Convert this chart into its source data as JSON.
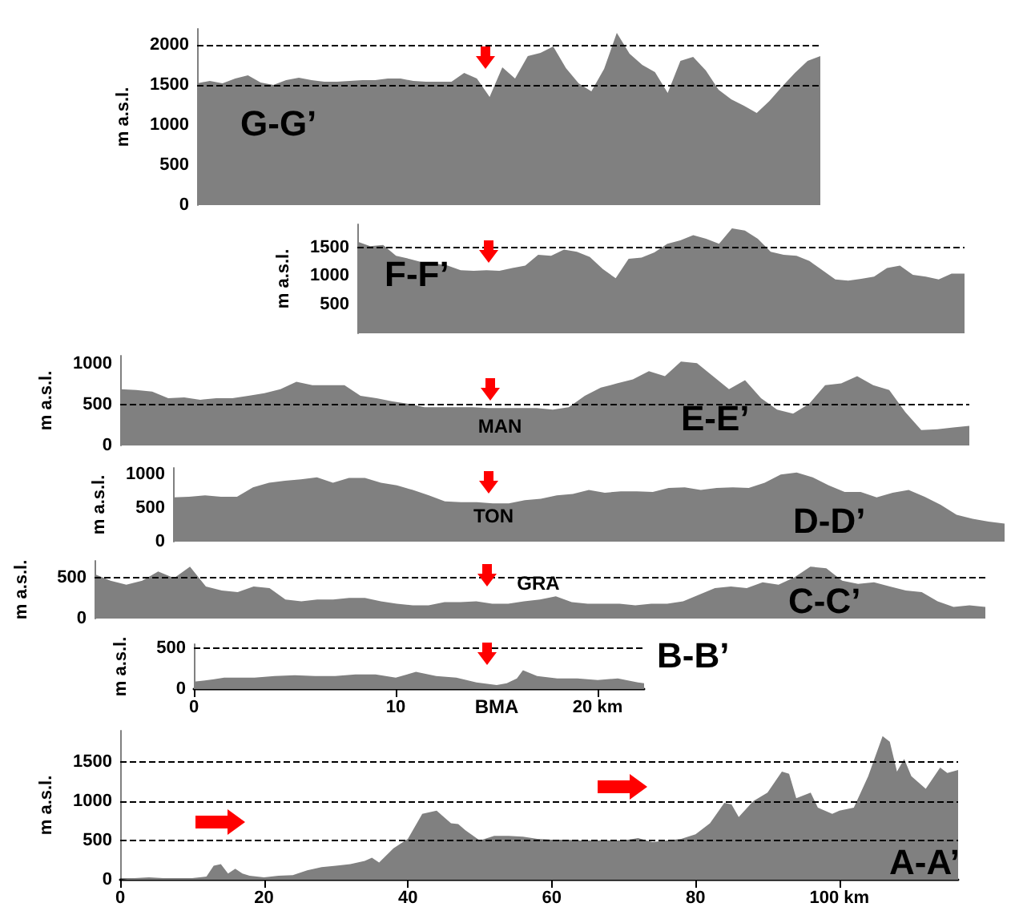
{
  "chart_data": [
    {
      "type": "area",
      "title": "G-G’",
      "ylabel": "m a.s.l.",
      "tick_labels": "y",
      "ylim": [
        0,
        2200
      ],
      "yticks": [
        0,
        500,
        1000,
        1500,
        2000
      ],
      "categories": [
        null,
        null,
        null,
        null,
        null,
        null,
        null,
        null,
        null,
        null,
        null,
        null,
        null,
        null,
        null,
        null,
        null,
        null,
        null,
        null,
        null,
        null,
        null,
        null,
        null,
        null,
        null,
        null,
        null,
        null,
        null,
        null,
        null,
        null,
        null,
        null,
        null,
        null,
        null,
        null,
        null,
        null,
        null,
        null,
        null,
        null,
        null,
        null,
        null,
        null
      ],
      "series": [
        {
          "color": "#808080",
          "values": [
            1520,
            1550,
            1520,
            1580,
            1620,
            1530,
            1500,
            1560,
            1590,
            1560,
            1540,
            1540,
            1550,
            1560,
            1560,
            1580,
            1580,
            1550,
            1540,
            1540,
            1540,
            1650,
            1580,
            1350,
            1720,
            1580,
            1860,
            1900,
            1980,
            1710,
            1520,
            1420,
            1700,
            2150,
            1890,
            1750,
            1660,
            1400,
            1800,
            1850,
            1680,
            1440,
            1320,
            1240,
            1150,
            1300,
            1480,
            1650,
            1800,
            1860
          ]
        }
      ],
      "ref_lines": [
        {
          "axis": "y",
          "value": 1500,
          "line_style": "dashed"
        },
        {
          "axis": "y",
          "value": 2000,
          "line_style": "dashed"
        }
      ]
    },
    {
      "type": "area",
      "title": "F-F’",
      "ylabel": "m a.s.l.",
      "tick_labels": "y",
      "ylim": [
        0,
        1900
      ],
      "yticks": [
        500,
        1000,
        1500
      ],
      "categories": [
        null,
        null,
        null,
        null,
        null,
        null,
        null,
        null,
        null,
        null,
        null,
        null,
        null,
        null,
        null,
        null,
        null,
        null,
        null,
        null,
        null,
        null,
        null,
        null,
        null,
        null,
        null,
        null,
        null,
        null,
        null,
        null,
        null,
        null,
        null,
        null,
        null,
        null,
        null,
        null,
        null,
        null,
        null,
        null,
        null,
        null,
        null,
        null
      ],
      "series": [
        {
          "color": "#808080",
          "values": [
            1600,
            1520,
            1540,
            1350,
            1300,
            1240,
            1220,
            1180,
            1100,
            1090,
            1100,
            1090,
            1140,
            1180,
            1370,
            1350,
            1460,
            1420,
            1330,
            1120,
            960,
            1300,
            1320,
            1410,
            1560,
            1620,
            1710,
            1650,
            1560,
            1830,
            1790,
            1650,
            1420,
            1370,
            1350,
            1260,
            1100,
            940,
            920,
            950,
            990,
            1140,
            1180,
            1020,
            990,
            940,
            1040,
            1040
          ]
        }
      ],
      "ref_lines": [
        {
          "axis": "y",
          "value": 1500,
          "line_style": "dashed"
        }
      ]
    },
    {
      "type": "area",
      "title": "E-E’",
      "ylabel": "m a.s.l.",
      "tick_labels": "y",
      "ylim": [
        0,
        1100
      ],
      "yticks": [
        0,
        500,
        1000
      ],
      "annotations": [
        "MAN"
      ],
      "categories": [
        null,
        null,
        null,
        null,
        null,
        null,
        null,
        null,
        null,
        null,
        null,
        null,
        null,
        null,
        null,
        null,
        null,
        null,
        null,
        null,
        null,
        null,
        null,
        null,
        null,
        null,
        null,
        null,
        null,
        null,
        null,
        null,
        null,
        null,
        null,
        null,
        null,
        null,
        null,
        null,
        null,
        null,
        null,
        null,
        null,
        null,
        null,
        null,
        null,
        null,
        null,
        null,
        null,
        null
      ],
      "series": [
        {
          "color": "#808080",
          "values": [
            690,
            680,
            660,
            580,
            590,
            560,
            580,
            580,
            610,
            640,
            690,
            780,
            740,
            740,
            740,
            610,
            580,
            540,
            510,
            470,
            470,
            470,
            470,
            460,
            460,
            460,
            460,
            440,
            470,
            610,
            710,
            760,
            810,
            910,
            850,
            1030,
            1010,
            850,
            690,
            800,
            580,
            440,
            390,
            510,
            740,
            760,
            850,
            740,
            680,
            410,
            190,
            200,
            220,
            240
          ]
        }
      ],
      "ref_lines": [
        {
          "axis": "y",
          "value": 500,
          "line_style": "dashed"
        }
      ]
    },
    {
      "type": "area",
      "title": "D-D’",
      "ylabel": "m a.s.l.",
      "tick_labels": "y",
      "ylim": [
        0,
        1100
      ],
      "yticks": [
        0,
        500,
        1000
      ],
      "annotations": [
        "TON"
      ],
      "categories": [
        null,
        null,
        null,
        null,
        null,
        null,
        null,
        null,
        null,
        null,
        null,
        null,
        null,
        null,
        null,
        null,
        null,
        null,
        null,
        null,
        null,
        null,
        null,
        null,
        null,
        null,
        null,
        null,
        null,
        null,
        null,
        null,
        null,
        null,
        null,
        null,
        null,
        null,
        null,
        null,
        null,
        null,
        null,
        null,
        null,
        null,
        null,
        null,
        null,
        null,
        null,
        null,
        null
      ],
      "series": [
        {
          "color": "#808080",
          "values": [
            660,
            670,
            690,
            670,
            670,
            810,
            880,
            910,
            930,
            960,
            880,
            950,
            950,
            880,
            840,
            770,
            690,
            600,
            590,
            590,
            570,
            570,
            620,
            640,
            690,
            710,
            770,
            730,
            750,
            750,
            740,
            800,
            810,
            770,
            800,
            810,
            800,
            880,
            1000,
            1030,
            960,
            840,
            740,
            740,
            660,
            730,
            770,
            670,
            550,
            400,
            340,
            300,
            270
          ]
        }
      ]
    },
    {
      "type": "area",
      "title": "C-C’",
      "ylabel": "m a.s.l.",
      "tick_labels": "y",
      "ylim": [
        0,
        700
      ],
      "yticks": [
        0,
        500
      ],
      "annotations": [
        "GRA"
      ],
      "categories": [
        null,
        null,
        null,
        null,
        null,
        null,
        null,
        null,
        null,
        null,
        null,
        null,
        null,
        null,
        null,
        null,
        null,
        null,
        null,
        null,
        null,
        null,
        null,
        null,
        null,
        null,
        null,
        null,
        null,
        null,
        null,
        null,
        null,
        null,
        null,
        null,
        null,
        null,
        null,
        null,
        null,
        null,
        null,
        null,
        null,
        null,
        null,
        null,
        null,
        null,
        null,
        null,
        null,
        null,
        null,
        null,
        null
      ],
      "series": [
        {
          "color": "#808080",
          "values": [
            540,
            460,
            410,
            460,
            570,
            490,
            630,
            390,
            340,
            320,
            390,
            370,
            230,
            210,
            230,
            230,
            250,
            250,
            210,
            180,
            160,
            160,
            200,
            200,
            210,
            180,
            180,
            210,
            230,
            270,
            200,
            180,
            180,
            180,
            160,
            180,
            180,
            210,
            290,
            370,
            390,
            370,
            440,
            410,
            500,
            630,
            610,
            460,
            420,
            440,
            390,
            340,
            320,
            210,
            140,
            160,
            140
          ]
        }
      ],
      "ref_lines": [
        {
          "axis": "y",
          "value": 500,
          "line_style": "dashed"
        }
      ]
    },
    {
      "type": "area",
      "title": "B-B’",
      "ylabel": "m a.s.l.",
      "ylim": [
        0,
        550
      ],
      "yticks": [
        0,
        500
      ],
      "xlim": [
        0,
        22.3
      ],
      "xticks": [
        0,
        10,
        {
          "value": 20,
          "label": "20 km"
        }
      ],
      "annotations": [
        "BMA"
      ],
      "series": [
        {
          "color": "#808080",
          "x": [
            0,
            1,
            1.5,
            2,
            3,
            4,
            5,
            6,
            7,
            8,
            9,
            10,
            11,
            12,
            13,
            14,
            15,
            15.5,
            16,
            16.3,
            17,
            18,
            19,
            20,
            21,
            22,
            22.3
          ],
          "values": [
            90,
            120,
            140,
            140,
            140,
            160,
            170,
            160,
            160,
            180,
            180,
            140,
            210,
            160,
            140,
            80,
            50,
            70,
            130,
            230,
            160,
            130,
            130,
            110,
            130,
            80,
            70
          ]
        }
      ],
      "ref_lines": [
        {
          "axis": "y",
          "value": 500,
          "line_style": "dashed"
        }
      ]
    },
    {
      "type": "area",
      "title": "A-A’",
      "ylabel": "m a.s.l.",
      "ylim": [
        0,
        1900
      ],
      "yticks": [
        0,
        500,
        1000,
        1500
      ],
      "xlim": [
        0,
        116.5
      ],
      "xticks": [
        0,
        20,
        40,
        60,
        80,
        {
          "value": 100,
          "label": "100 km"
        }
      ],
      "series": [
        {
          "color": "#808080",
          "x": [
            0,
            2,
            4,
            6,
            8,
            10,
            12,
            13,
            14,
            15,
            16,
            17,
            18,
            20,
            22,
            24,
            26,
            28,
            30,
            32,
            34,
            35,
            36,
            38,
            40,
            42,
            44,
            46,
            47,
            48,
            50,
            52,
            54,
            56,
            58,
            60,
            62,
            64,
            66,
            68,
            70,
            72,
            74,
            76,
            78,
            80,
            82,
            84,
            85,
            86,
            88,
            90,
            92,
            93,
            94,
            96,
            97,
            99,
            100,
            102,
            104,
            106,
            107,
            108,
            109,
            110,
            112,
            114,
            115,
            116.5
          ],
          "values": [
            0,
            20,
            30,
            20,
            20,
            20,
            40,
            180,
            200,
            80,
            140,
            80,
            50,
            30,
            50,
            60,
            120,
            160,
            180,
            200,
            240,
            280,
            220,
            400,
            520,
            840,
            880,
            720,
            710,
            630,
            500,
            560,
            560,
            550,
            520,
            510,
            510,
            500,
            500,
            500,
            500,
            530,
            480,
            500,
            520,
            580,
            720,
            980,
            960,
            800,
            1000,
            1110,
            1380,
            1350,
            1040,
            1110,
            920,
            840,
            880,
            920,
            1320,
            1830,
            1760,
            1380,
            1540,
            1320,
            1160,
            1430,
            1360,
            1400
          ]
        }
      ],
      "ref_lines": [
        {
          "axis": "y",
          "value": 500,
          "line_style": "dashed"
        },
        {
          "axis": "y",
          "value": 1000,
          "line_style": "dashed"
        },
        {
          "axis": "y",
          "value": 1500,
          "line_style": "dashed"
        }
      ]
    }
  ]
}
